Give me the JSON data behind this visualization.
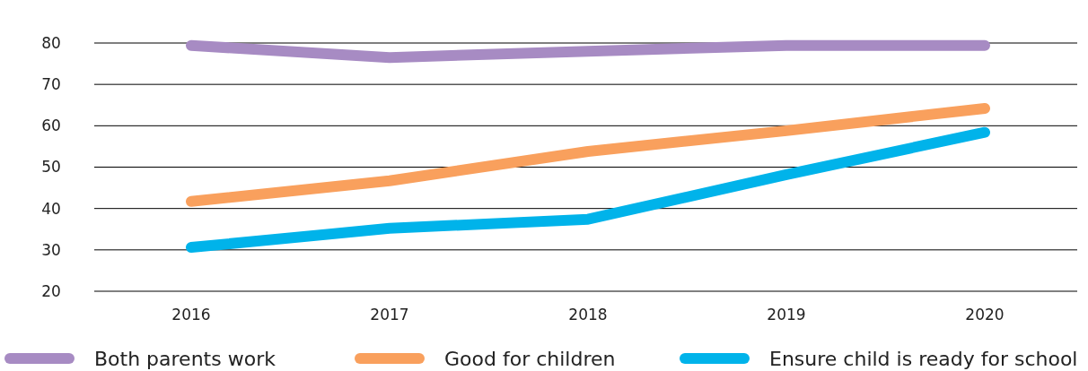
{
  "chart_data": {
    "type": "line",
    "categories": [
      "2016",
      "2017",
      "2018",
      "2019",
      "2020"
    ],
    "ylim": [
      20,
      80
    ],
    "yticks": [
      20,
      30,
      40,
      50,
      60,
      70,
      80
    ],
    "grid": "y",
    "legend": "bottom",
    "marker": "none",
    "line_style": "solid",
    "series": [
      {
        "name": "Both parents work",
        "color": "#a78bc3",
        "values": [
          79.4,
          76.5,
          78,
          79.4,
          79.4
        ]
      },
      {
        "name": "Good for children",
        "color": "#f9a05d",
        "values": [
          41.7,
          46.7,
          53.8,
          58.8,
          64.2
        ]
      },
      {
        "name": "Ensure child is ready for school",
        "color": "#00b3ea",
        "values": [
          30.6,
          35.2,
          37.4,
          48.2,
          58.4
        ]
      }
    ]
  }
}
